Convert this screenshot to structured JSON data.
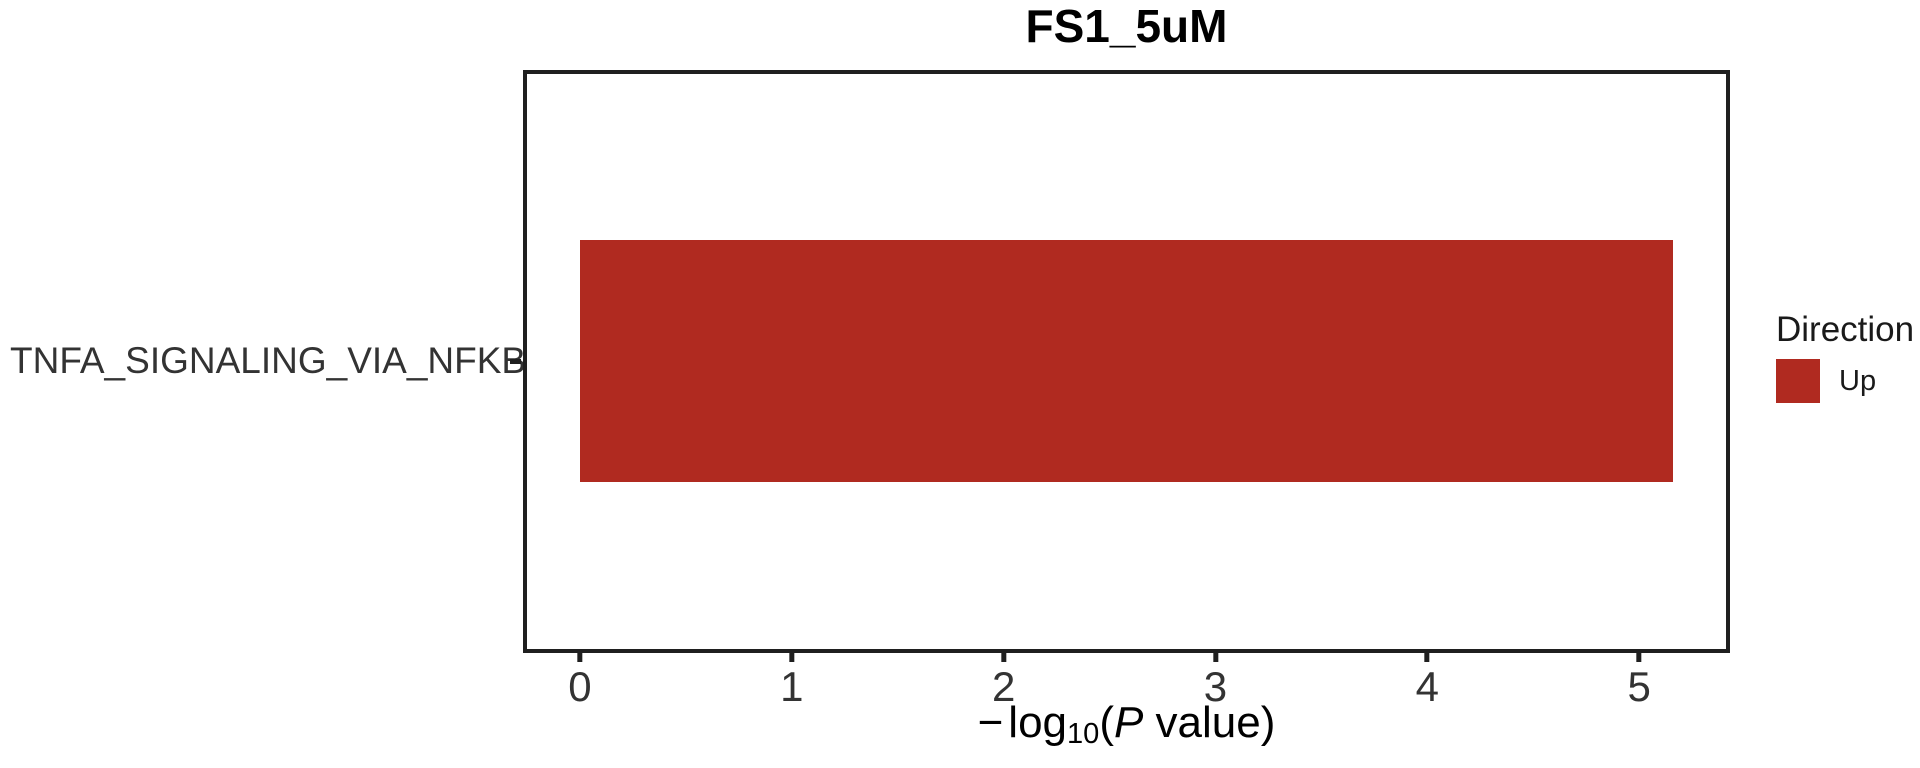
{
  "title": "FS1_5uM",
  "chart_data": {
    "type": "bar",
    "orientation": "horizontal",
    "title": "FS1_5uM",
    "categories": [
      "TNFA_SIGNALING_VIA_NFKB"
    ],
    "values": [
      5.16
    ],
    "series": [
      {
        "name": "Up",
        "values": [
          5.16
        ]
      }
    ],
    "xlabel": "-log10(P value)",
    "ylabel": "",
    "xlim": [
      -0.25,
      5.41
    ],
    "x_ticks": [
      0,
      1,
      2,
      3,
      4,
      5
    ],
    "grid": false,
    "legend_position": "right",
    "legend_title": "Direction",
    "legend_entries": [
      {
        "label": "Up",
        "color": "#B02A20"
      }
    ],
    "bar_color": "#B02A20"
  },
  "x_axis_title_parts": {
    "minus": "−",
    "log": "log",
    "sub": "10",
    "open": "(",
    "p": "P",
    "rest": " value)"
  },
  "legend": {
    "title": "Direction",
    "up_label": "Up"
  },
  "colors": {
    "bar": "#B02A20",
    "panel_border": "#1f1f1f",
    "tick": "#1f1f1f",
    "axis_text": "#333333",
    "title_text": "#000000"
  }
}
